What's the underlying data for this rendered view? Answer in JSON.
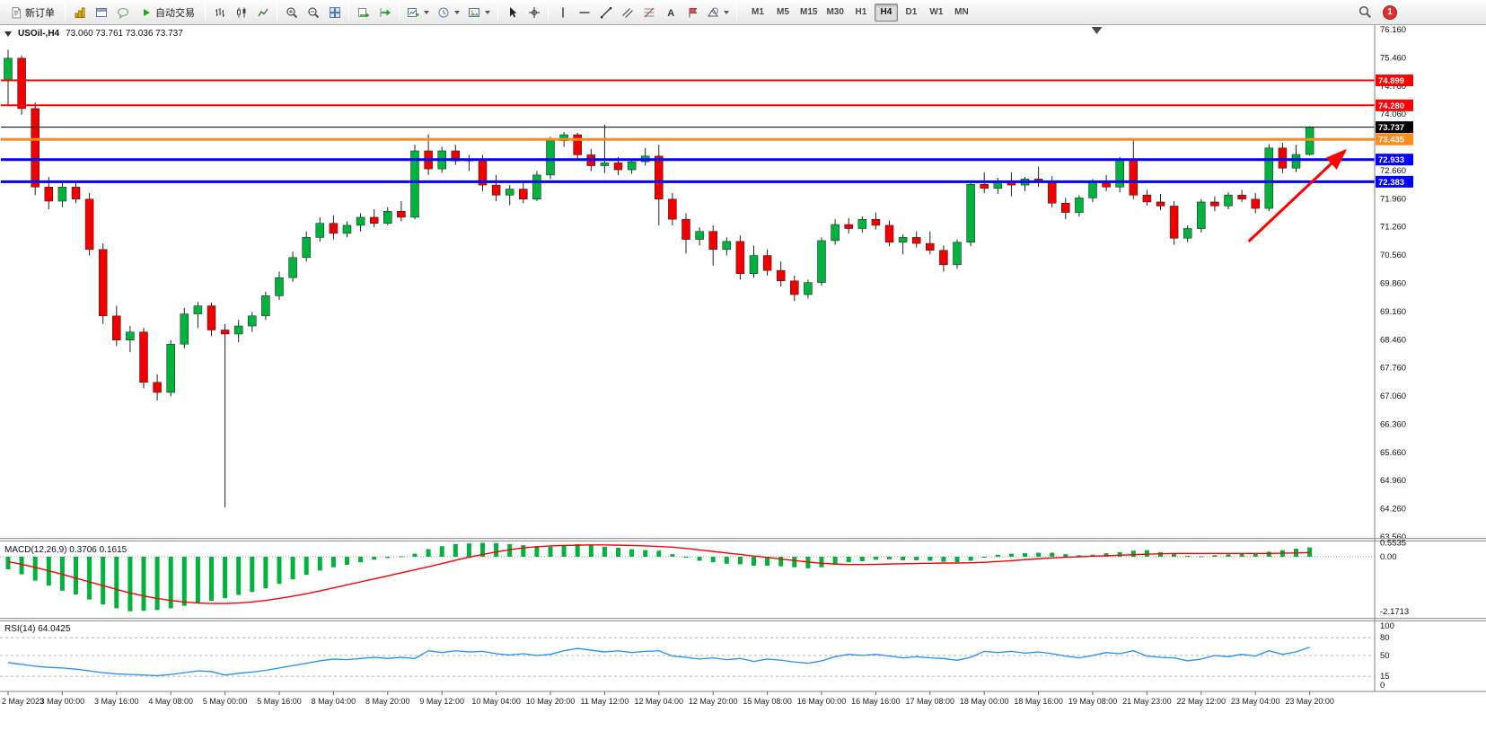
{
  "toolbar": {
    "new_order": "新订单",
    "auto_trading": "自动交易",
    "text_tool_glyph": "A",
    "timeframes": [
      "M1",
      "M5",
      "M15",
      "M30",
      "H1",
      "H4",
      "D1",
      "W1",
      "MN"
    ],
    "active_timeframe": "H4",
    "notification_count": "1",
    "icons": [
      "new-order-icon",
      "market-watch-icon",
      "data-window-icon",
      "terminal-icon",
      "auto-trading-icon",
      "bar-chart-icon",
      "candlestick-chart-icon",
      "line-chart-icon",
      "zoom-in-icon",
      "zoom-out-icon",
      "tile-windows-icon",
      "auto-arrange-icon",
      "chart-shift-icon",
      "new-chart-icon",
      "profiles-icon",
      "templates-icon",
      "cursor-icon",
      "crosshair-icon",
      "vertical-line-icon",
      "horizontal-line-icon",
      "trendline-icon",
      "channel-icon",
      "fibonacci-icon",
      "text-icon",
      "arrow-label-icon",
      "shapes-icon",
      "search-icon"
    ]
  },
  "chart": {
    "symbol_timeframe": "USOil-,H4",
    "ohlc_readout": "73.060 73.761 73.036 73.737",
    "macd_label": "MACD(12,26,9) 0.3706 0.1615",
    "rsi_label": "RSI(14) 64.0425"
  },
  "chart_data": {
    "type": "candlestick",
    "symbol": "USOil",
    "timeframe": "H4",
    "ohlc_current": {
      "open": 73.06,
      "high": 73.761,
      "low": 73.036,
      "close": 73.737
    },
    "ylim": [
      63.56,
      76.16
    ],
    "up_color": "#00b33c",
    "down_color": "#f20000",
    "price_axis_labels": [
      "76.160",
      "75.460",
      "74.760",
      "74.060",
      "73.360",
      "72.660",
      "71.960",
      "71.260",
      "70.560",
      "69.860",
      "69.160",
      "68.460",
      "67.760",
      "67.060",
      "66.360",
      "65.660",
      "64.960",
      "64.260",
      "63.560"
    ],
    "time_axis_labels": [
      "2 May 2023",
      "3 May 00:00",
      "3 May 16:00",
      "4 May 08:00",
      "5 May 00:00",
      "5 May 16:00",
      "8 May 04:00",
      "8 May 20:00",
      "9 May 12:00",
      "10 May 04:00",
      "10 May 20:00",
      "11 May 12:00",
      "12 May 04:00",
      "12 May 20:00",
      "15 May 08:00",
      "16 May 00:00",
      "16 May 16:00",
      "17 May 08:00",
      "18 May 00:00",
      "18 May 16:00",
      "19 May 08:00",
      "21 May 23:00",
      "22 May 12:00",
      "23 May 04:00",
      "23 May 20:00"
    ],
    "levels": [
      {
        "price": 74.899,
        "label": "74.899",
        "color": "#ff0000",
        "width": 2
      },
      {
        "price": 74.28,
        "label": "74.280",
        "color": "#ff0000",
        "width": 2
      },
      {
        "price": 73.435,
        "label": "73.435",
        "color": "#ff8c1a",
        "width": 3
      },
      {
        "price": 72.933,
        "label": "72.933",
        "color": "#0000ff",
        "width": 3
      },
      {
        "price": 72.383,
        "label": "72.383",
        "color": "#0000ff",
        "width": 3
      }
    ],
    "current_price": {
      "value": 73.737,
      "label": "73.737",
      "color": "#000000"
    },
    "shift_marker_bar": 80.3,
    "arrow_annotation": {
      "from_bar": 91.5,
      "from_price": 70.9,
      "to_bar": 98.6,
      "to_price": 73.15,
      "color": "#ff0000"
    },
    "candles": [
      [
        74.9,
        75.66,
        74.3,
        75.45
      ],
      [
        75.45,
        75.52,
        74.05,
        74.2
      ],
      [
        74.2,
        74.35,
        72.05,
        72.25
      ],
      [
        72.25,
        72.5,
        71.7,
        71.9
      ],
      [
        71.9,
        72.35,
        71.75,
        72.25
      ],
      [
        72.25,
        72.4,
        71.85,
        71.95
      ],
      [
        71.95,
        72.1,
        70.55,
        70.7
      ],
      [
        70.7,
        70.85,
        68.85,
        69.05
      ],
      [
        69.05,
        69.3,
        68.3,
        68.45
      ],
      [
        68.45,
        68.8,
        68.15,
        68.65
      ],
      [
        68.65,
        68.75,
        67.25,
        67.4
      ],
      [
        67.4,
        67.6,
        66.95,
        67.15
      ],
      [
        67.15,
        68.45,
        67.05,
        68.35
      ],
      [
        68.35,
        69.25,
        68.25,
        69.1
      ],
      [
        69.1,
        69.4,
        68.75,
        69.3
      ],
      [
        69.3,
        69.38,
        68.55,
        68.7
      ],
      [
        68.7,
        68.85,
        64.3,
        68.6
      ],
      [
        68.6,
        68.95,
        68.4,
        68.8
      ],
      [
        68.8,
        69.15,
        68.65,
        69.05
      ],
      [
        69.05,
        69.65,
        68.95,
        69.55
      ],
      [
        69.55,
        70.15,
        69.45,
        70.0
      ],
      [
        70.0,
        70.65,
        69.9,
        70.5
      ],
      [
        70.5,
        71.15,
        70.4,
        71.0
      ],
      [
        71.0,
        71.5,
        70.9,
        71.35
      ],
      [
        71.35,
        71.55,
        70.95,
        71.1
      ],
      [
        71.1,
        71.4,
        71.0,
        71.3
      ],
      [
        71.3,
        71.6,
        71.15,
        71.5
      ],
      [
        71.5,
        71.7,
        71.25,
        71.35
      ],
      [
        71.35,
        71.75,
        71.3,
        71.65
      ],
      [
        71.65,
        71.9,
        71.4,
        71.5
      ],
      [
        71.5,
        73.3,
        71.45,
        73.15
      ],
      [
        73.15,
        73.56,
        72.55,
        72.7
      ],
      [
        72.7,
        73.25,
        72.6,
        73.15
      ],
      [
        73.15,
        73.3,
        72.8,
        72.9
      ],
      [
        72.9,
        73.05,
        72.65,
        72.95
      ],
      [
        72.95,
        73.05,
        72.15,
        72.3
      ],
      [
        72.3,
        72.55,
        71.9,
        72.05
      ],
      [
        72.05,
        72.3,
        71.8,
        72.2
      ],
      [
        72.2,
        72.35,
        71.85,
        71.95
      ],
      [
        71.95,
        72.65,
        71.9,
        72.55
      ],
      [
        72.55,
        73.5,
        72.45,
        73.4
      ],
      [
        73.4,
        73.62,
        73.25,
        73.55
      ],
      [
        73.55,
        73.6,
        72.95,
        73.05
      ],
      [
        73.05,
        73.2,
        72.65,
        72.78
      ],
      [
        72.78,
        73.8,
        72.6,
        72.85
      ],
      [
        72.85,
        73.0,
        72.55,
        72.68
      ],
      [
        72.68,
        72.95,
        72.58,
        72.88
      ],
      [
        72.88,
        73.22,
        72.78,
        73.02
      ],
      [
        73.02,
        73.3,
        71.3,
        71.95
      ],
      [
        71.95,
        72.1,
        71.3,
        71.45
      ],
      [
        71.45,
        71.6,
        70.6,
        70.95
      ],
      [
        70.95,
        71.25,
        70.8,
        71.15
      ],
      [
        71.15,
        71.3,
        70.3,
        70.7
      ],
      [
        70.7,
        71.0,
        70.55,
        70.9
      ],
      [
        70.9,
        71.05,
        69.95,
        70.1
      ],
      [
        70.1,
        70.8,
        70.0,
        70.55
      ],
      [
        70.55,
        70.7,
        70.05,
        70.18
      ],
      [
        70.18,
        70.4,
        69.78,
        69.92
      ],
      [
        69.92,
        70.05,
        69.42,
        69.58
      ],
      [
        69.58,
        69.95,
        69.48,
        69.88
      ],
      [
        69.88,
        71.0,
        69.8,
        70.92
      ],
      [
        70.92,
        71.45,
        70.82,
        71.32
      ],
      [
        71.32,
        71.48,
        71.1,
        71.22
      ],
      [
        71.22,
        71.52,
        71.12,
        71.45
      ],
      [
        71.45,
        71.62,
        71.2,
        71.3
      ],
      [
        71.3,
        71.42,
        70.78,
        70.88
      ],
      [
        70.88,
        71.08,
        70.58,
        71.0
      ],
      [
        71.0,
        71.15,
        70.75,
        70.85
      ],
      [
        70.85,
        71.15,
        70.58,
        70.68
      ],
      [
        70.68,
        70.8,
        70.15,
        70.32
      ],
      [
        70.32,
        70.95,
        70.22,
        70.88
      ],
      [
        70.88,
        72.42,
        70.78,
        72.32
      ],
      [
        72.32,
        72.62,
        72.1,
        72.22
      ],
      [
        72.22,
        72.48,
        72.08,
        72.38
      ],
      [
        72.38,
        72.62,
        72.02,
        72.3
      ],
      [
        72.3,
        72.5,
        72.15,
        72.45
      ],
      [
        72.45,
        72.76,
        72.25,
        72.38
      ],
      [
        72.38,
        72.52,
        71.75,
        71.85
      ],
      [
        71.85,
        71.98,
        71.45,
        71.62
      ],
      [
        71.62,
        72.05,
        71.52,
        71.98
      ],
      [
        71.98,
        72.45,
        71.88,
        72.38
      ],
      [
        72.38,
        72.55,
        72.15,
        72.25
      ],
      [
        72.25,
        73.0,
        72.12,
        72.92
      ],
      [
        72.92,
        73.44,
        71.95,
        72.05
      ],
      [
        72.05,
        72.18,
        71.78,
        71.88
      ],
      [
        71.88,
        72.08,
        71.68,
        71.78
      ],
      [
        71.78,
        71.9,
        70.82,
        70.98
      ],
      [
        70.98,
        71.3,
        70.88,
        71.22
      ],
      [
        71.22,
        71.95,
        71.12,
        71.88
      ],
      [
        71.88,
        72.02,
        71.65,
        71.78
      ],
      [
        71.78,
        72.12,
        71.7,
        72.05
      ],
      [
        72.05,
        72.18,
        71.88,
        71.95
      ],
      [
        71.95,
        72.1,
        71.6,
        71.72
      ],
      [
        71.72,
        73.32,
        71.65,
        73.22
      ],
      [
        73.22,
        73.35,
        72.6,
        72.72
      ],
      [
        72.72,
        73.3,
        72.62,
        73.06
      ],
      [
        73.06,
        73.761,
        73.036,
        73.737
      ]
    ],
    "macd": {
      "name": "MACD(12,26,9)",
      "current_values": [
        0.3706,
        0.1615
      ],
      "scale_labels": [
        "0.5535",
        "0.00",
        "-2.1713"
      ],
      "scale_values": [
        0.5535,
        0,
        -2.1713
      ],
      "histogram_color": "#00b33c",
      "signal_color": "#ff0000",
      "histogram": [
        -0.5,
        -0.7,
        -0.95,
        -1.15,
        -1.35,
        -1.5,
        -1.7,
        -1.9,
        -2.05,
        -2.17,
        -2.15,
        -2.12,
        -2.05,
        -1.95,
        -1.85,
        -1.75,
        -1.65,
        -1.52,
        -1.4,
        -1.25,
        -1.08,
        -0.9,
        -0.72,
        -0.55,
        -0.42,
        -0.32,
        -0.22,
        -0.12,
        -0.05,
        0.02,
        0.12,
        0.3,
        0.42,
        0.5,
        0.53,
        0.5535,
        0.54,
        0.5,
        0.46,
        0.42,
        0.4,
        0.45,
        0.5,
        0.48,
        0.4,
        0.36,
        0.3,
        0.26,
        0.24,
        0.1,
        -0.04,
        -0.16,
        -0.22,
        -0.28,
        -0.3,
        -0.36,
        -0.36,
        -0.38,
        -0.42,
        -0.46,
        -0.42,
        -0.32,
        -0.22,
        -0.18,
        -0.12,
        -0.1,
        -0.14,
        -0.14,
        -0.16,
        -0.2,
        -0.22,
        -0.16,
        -0.02,
        0.08,
        0.12,
        0.14,
        0.16,
        0.16,
        0.1,
        0.06,
        0.08,
        0.14,
        0.18,
        0.24,
        0.26,
        0.18,
        0.12,
        0.04,
        0.02,
        0.06,
        0.1,
        0.14,
        0.12,
        0.2,
        0.26,
        0.32,
        0.3706
      ],
      "signal": [
        -0.2,
        -0.3,
        -0.42,
        -0.56,
        -0.7,
        -0.85,
        -1.0,
        -1.15,
        -1.3,
        -1.44,
        -1.56,
        -1.66,
        -1.74,
        -1.8,
        -1.84,
        -1.86,
        -1.86,
        -1.84,
        -1.8,
        -1.74,
        -1.66,
        -1.57,
        -1.47,
        -1.36,
        -1.24,
        -1.12,
        -1.0,
        -0.88,
        -0.76,
        -0.64,
        -0.52,
        -0.4,
        -0.27,
        -0.14,
        -0.02,
        0.09,
        0.19,
        0.28,
        0.35,
        0.4,
        0.43,
        0.45,
        0.46,
        0.47,
        0.47,
        0.46,
        0.45,
        0.43,
        0.41,
        0.38,
        0.33,
        0.27,
        0.21,
        0.15,
        0.09,
        0.03,
        -0.03,
        -0.09,
        -0.15,
        -0.21,
        -0.26,
        -0.29,
        -0.31,
        -0.31,
        -0.3,
        -0.29,
        -0.28,
        -0.27,
        -0.26,
        -0.25,
        -0.25,
        -0.24,
        -0.22,
        -0.19,
        -0.16,
        -0.12,
        -0.08,
        -0.05,
        -0.02,
        0.0,
        0.02,
        0.04,
        0.06,
        0.08,
        0.1,
        0.12,
        0.13,
        0.13,
        0.13,
        0.13,
        0.13,
        0.13,
        0.13,
        0.13,
        0.14,
        0.15,
        0.1615
      ]
    },
    "rsi": {
      "name": "RSI(14)",
      "current_value": 64.0425,
      "color": "#1e90ff",
      "levels": [
        80,
        50,
        15
      ],
      "scale_labels": [
        "100",
        "80",
        "50",
        "15",
        "0"
      ],
      "values": [
        38,
        35,
        32,
        30,
        29,
        27,
        24,
        21,
        19,
        18,
        17,
        16,
        18,
        21,
        24,
        23,
        17,
        20,
        22,
        25,
        29,
        33,
        37,
        41,
        44,
        43,
        45,
        47,
        45,
        47,
        45,
        58,
        55,
        58,
        56,
        57,
        53,
        51,
        53,
        50,
        52,
        58,
        62,
        59,
        56,
        58,
        55,
        57,
        58,
        49,
        47,
        44,
        46,
        43,
        45,
        40,
        44,
        42,
        39,
        37,
        41,
        48,
        52,
        50,
        52,
        49,
        46,
        48,
        46,
        45,
        42,
        47,
        57,
        55,
        57,
        54,
        56,
        53,
        49,
        46,
        50,
        55,
        53,
        58,
        49,
        47,
        46,
        41,
        44,
        50,
        48,
        52,
        49,
        58,
        52,
        56,
        64.04
      ]
    }
  }
}
